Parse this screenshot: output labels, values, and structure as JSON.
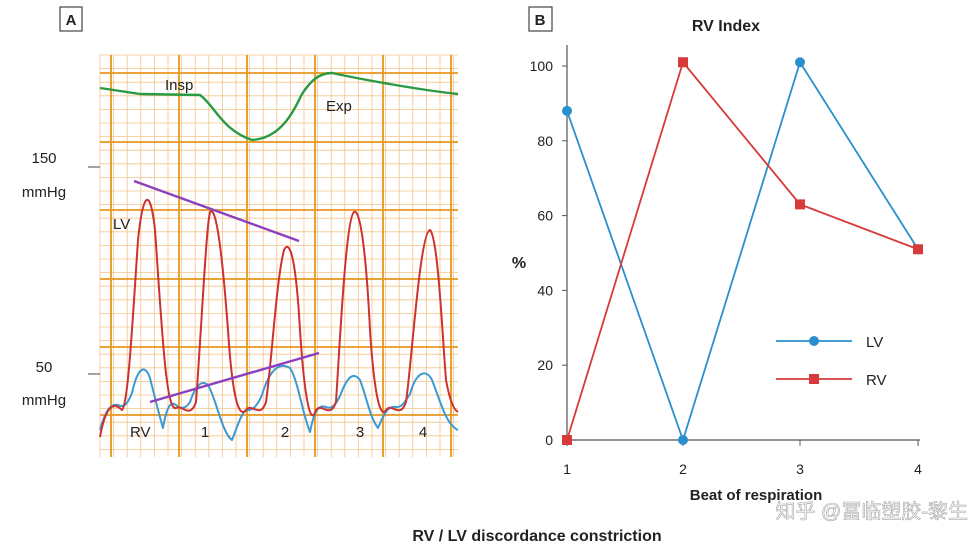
{
  "figure_caption": "RV / LV discordance constriction",
  "watermark": "知乎 @冨临塑胶-黎生",
  "panel_a": {
    "label": "A",
    "y_ticks": [
      {
        "value": "150",
        "unit": "mmHg"
      },
      {
        "value": "50",
        "unit": "mmHg"
      }
    ],
    "annotations": {
      "insp": "Insp",
      "exp": "Exp",
      "lv": "LV",
      "rv": "RV"
    },
    "beat_labels": [
      "1",
      "2",
      "3",
      "4"
    ]
  },
  "chart_data": {
    "type": "line",
    "panel_label": "B",
    "title": "RV Index",
    "xlabel": "Beat of respiration",
    "ylabel": "%",
    "categories": [
      "1",
      "2",
      "3",
      "4"
    ],
    "ylim": [
      0,
      100
    ],
    "yticks": [
      0,
      20,
      40,
      60,
      80,
      100
    ],
    "series": [
      {
        "name": "LV",
        "values": [
          88,
          0,
          101,
          51
        ],
        "color": "#2a8fcf",
        "marker": "circle"
      },
      {
        "name": "RV",
        "values": [
          0,
          101,
          63,
          51
        ],
        "color": "#d63a3a",
        "marker": "square"
      }
    ],
    "legend": "center-right",
    "grid": false
  }
}
